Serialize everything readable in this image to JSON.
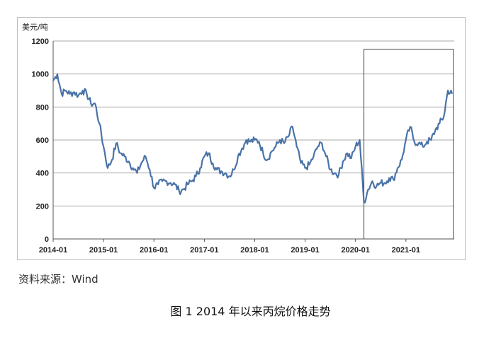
{
  "source_label": "资料来源：Wind",
  "caption": "图 1  2014 年以来丙烷价格走势",
  "chart_data": {
    "type": "line",
    "ylabel": "美元/吨",
    "ylim": [
      0,
      1200
    ],
    "yticks": [
      0,
      200,
      400,
      600,
      800,
      1000,
      1200
    ],
    "xlim": [
      "2014-01",
      "2021-12"
    ],
    "xticks": [
      "2014-01",
      "2015-01",
      "2016-01",
      "2017-01",
      "2018-01",
      "2019-01",
      "2020-01",
      "2021-01"
    ],
    "grid": true,
    "line_color": "#4a73a8",
    "highlight_box": {
      "x_start": "2020-03",
      "x_end": "2021-12",
      "y_top": 1150
    },
    "series": [
      {
        "x": [
          "2014-01",
          "2014-02",
          "2014-03",
          "2014-04",
          "2014-05",
          "2014-06",
          "2014-07",
          "2014-08",
          "2014-09",
          "2014-10",
          "2014-11",
          "2014-12",
          "2015-01",
          "2015-02",
          "2015-03",
          "2015-04",
          "2015-05",
          "2015-06",
          "2015-07",
          "2015-08",
          "2015-09",
          "2015-10",
          "2015-11",
          "2015-12",
          "2016-01",
          "2016-02",
          "2016-03",
          "2016-04",
          "2016-05",
          "2016-06",
          "2016-07",
          "2016-08",
          "2016-09",
          "2016-10",
          "2016-11",
          "2016-12",
          "2017-01",
          "2017-02",
          "2017-03",
          "2017-04",
          "2017-05",
          "2017-06",
          "2017-07",
          "2017-08",
          "2017-09",
          "2017-10",
          "2017-11",
          "2017-12",
          "2018-01",
          "2018-02",
          "2018-03",
          "2018-04",
          "2018-05",
          "2018-06",
          "2018-07",
          "2018-08",
          "2018-09",
          "2018-10",
          "2018-11",
          "2018-12",
          "2019-01",
          "2019-02",
          "2019-03",
          "2019-04",
          "2019-05",
          "2019-06",
          "2019-07",
          "2019-08",
          "2019-09",
          "2019-10",
          "2019-11",
          "2019-12",
          "2020-01",
          "2020-02",
          "2020-03",
          "2020-04",
          "2020-05",
          "2020-06",
          "2020-07",
          "2020-08",
          "2020-09",
          "2020-10",
          "2020-11",
          "2020-12",
          "2021-01",
          "2021-02",
          "2021-03",
          "2021-04",
          "2021-05",
          "2021-06",
          "2021-07",
          "2021-08",
          "2021-09",
          "2021-10",
          "2021-11",
          "2021-12"
        ],
        "values": [
          960,
          1000,
          880,
          900,
          880,
          890,
          870,
          900,
          880,
          820,
          820,
          700,
          560,
          430,
          480,
          580,
          520,
          500,
          470,
          430,
          400,
          460,
          500,
          420,
          310,
          330,
          350,
          350,
          340,
          330,
          290,
          300,
          330,
          350,
          380,
          430,
          500,
          520,
          460,
          420,
          410,
          400,
          380,
          420,
          500,
          550,
          600,
          590,
          600,
          590,
          520,
          480,
          530,
          560,
          600,
          580,
          620,
          680,
          560,
          460,
          430,
          450,
          500,
          560,
          580,
          500,
          420,
          400,
          390,
          470,
          520,
          490,
          560,
          600,
          220,
          300,
          350,
          320,
          340,
          340,
          370,
          360,
          430,
          480,
          600,
          680,
          590,
          580,
          560,
          590,
          600,
          660,
          700,
          740,
          900,
          880
        ]
      }
    ]
  }
}
